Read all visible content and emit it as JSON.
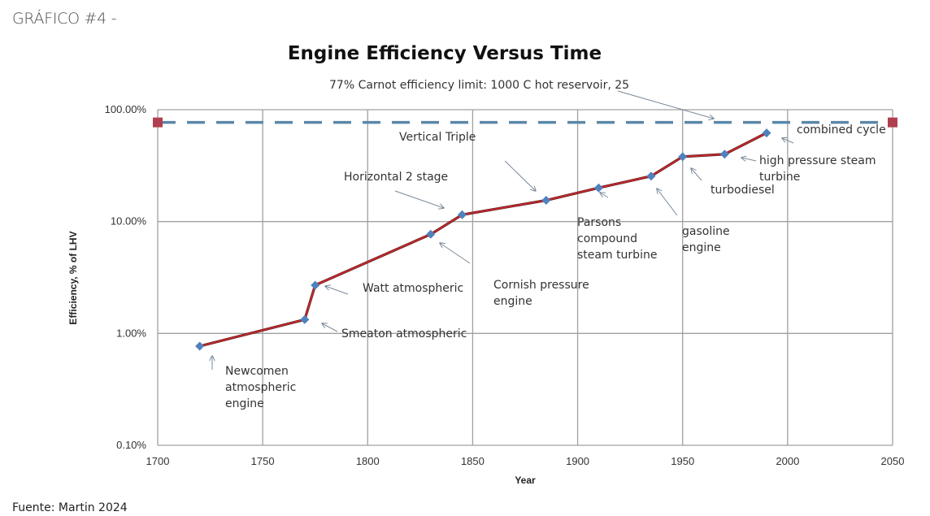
{
  "page": {
    "heading": "GRÁFICO #4 -",
    "source": "Fuente: Martin 2024"
  },
  "chart_data": {
    "type": "line",
    "title": "Engine Efficiency Versus Time",
    "xlabel": "Year",
    "ylabel": "Efficiency, % of LHV",
    "xlim": [
      1700,
      2050
    ],
    "ylim": [
      0.1,
      100
    ],
    "yscale": "log",
    "grid": true,
    "x_ticks": [
      1700,
      1750,
      1800,
      1850,
      1900,
      1950,
      2000,
      2050
    ],
    "x_tick_labels": [
      "1700",
      "1750",
      "1800",
      "1850",
      "1900",
      "1950",
      "2000",
      "2050"
    ],
    "y_ticks": [
      0.1,
      1,
      10,
      100
    ],
    "y_tick_labels": [
      "0.10%",
      "1.00%",
      "10.00%",
      "100.00%"
    ],
    "colors": {
      "efficiency_line": "#c0282d",
      "efficiency_marker": "#4f81bd",
      "carnot_line": "#5b87a8",
      "carnot_marker": "#b0404f",
      "grid": "#a0a0a0"
    },
    "series": [
      {
        "name": "Engine efficiency",
        "points": [
          {
            "x": 1720,
            "y": 0.77
          },
          {
            "x": 1770,
            "y": 1.33
          },
          {
            "x": 1775,
            "y": 2.7
          },
          {
            "x": 1830,
            "y": 7.7
          },
          {
            "x": 1845,
            "y": 11.5
          },
          {
            "x": 1885,
            "y": 15.5
          },
          {
            "x": 1910,
            "y": 20
          },
          {
            "x": 1935,
            "y": 25.5
          },
          {
            "x": 1950,
            "y": 38
          },
          {
            "x": 1970,
            "y": 40
          },
          {
            "x": 1990,
            "y": 62
          }
        ]
      },
      {
        "name": "77% Carnot efficiency limit",
        "points": [
          {
            "x": 1700,
            "y": 77
          },
          {
            "x": 2050,
            "y": 77
          }
        ]
      }
    ],
    "annotations": [
      {
        "lines": [
          "77% Carnot efficiency limit:  1000 C hot reservoir, 25"
        ],
        "target": {
          "x": 1968,
          "y": 77
        }
      },
      {
        "lines": [
          "Newcomen",
          "atmospheric",
          "engine"
        ],
        "target": {
          "x": 1720,
          "y": 0.77
        }
      },
      {
        "lines": [
          "Smeaton atmospheric"
        ],
        "target": {
          "x": 1770,
          "y": 1.33
        }
      },
      {
        "lines": [
          "Watt atmospheric"
        ],
        "target": {
          "x": 1775,
          "y": 2.7
        }
      },
      {
        "lines": [
          "Cornish pressure",
          "engine"
        ],
        "target": {
          "x": 1830,
          "y": 7.7
        }
      },
      {
        "lines": [
          "Horizontal 2 stage"
        ],
        "target": {
          "x": 1845,
          "y": 11.5
        }
      },
      {
        "lines": [
          "Vertical Triple"
        ],
        "target": {
          "x": 1885,
          "y": 15.5
        }
      },
      {
        "lines": [
          "Parsons",
          "compound",
          "steam turbine"
        ],
        "target": {
          "x": 1910,
          "y": 20
        }
      },
      {
        "lines": [
          "gasoline",
          "engine"
        ],
        "target": {
          "x": 1935,
          "y": 25.5
        }
      },
      {
        "lines": [
          "turbodiesel"
        ],
        "target": {
          "x": 1950,
          "y": 38
        }
      },
      {
        "lines": [
          "high pressure  steam",
          "turbine"
        ],
        "target": {
          "x": 1970,
          "y": 40
        }
      },
      {
        "lines": [
          "combined cycle"
        ],
        "target": {
          "x": 1990,
          "y": 62
        }
      }
    ]
  }
}
